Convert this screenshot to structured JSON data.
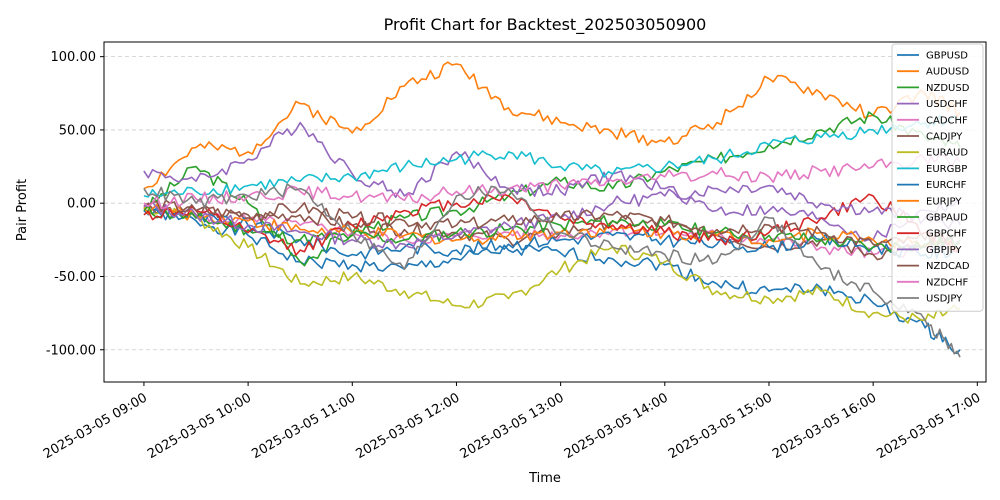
{
  "chart_data": {
    "type": "line",
    "title": "Profit Chart for Backtest_202503050900",
    "xlabel": "Time",
    "ylabel": "Pair Profit",
    "x_ticks": [
      "2025-03-05 09:00",
      "2025-03-05 10:00",
      "2025-03-05 11:00",
      "2025-03-05 12:00",
      "2025-03-05 13:00",
      "2025-03-05 14:00",
      "2025-03-05 15:00",
      "2025-03-05 16:00",
      "2025-03-05 17:00"
    ],
    "y_ticks": [
      "-100.00",
      "-50.00",
      "0.00",
      "50.00",
      "100.00"
    ],
    "ylim": [
      -122,
      110
    ],
    "xlim": [
      "2025-03-05 08:37",
      "2025-03-05 17:05"
    ],
    "grid": "horizontal dashed",
    "legend_position": "top-right",
    "x": [
      "2025-03-05 09:00",
      "2025-03-05 09:30",
      "2025-03-05 10:00",
      "2025-03-05 10:30",
      "2025-03-05 11:00",
      "2025-03-05 11:30",
      "2025-03-05 12:00",
      "2025-03-05 12:30",
      "2025-03-05 13:00",
      "2025-03-05 13:30",
      "2025-03-05 14:00",
      "2025-03-05 14:30",
      "2025-03-05 15:00",
      "2025-03-05 15:30",
      "2025-03-05 16:00",
      "2025-03-05 16:30",
      "2025-03-05 16:50"
    ],
    "series": [
      {
        "name": "GBPUSD",
        "color": "#1f77b4",
        "values": [
          -5,
          -12,
          -22,
          -40,
          -42,
          -45,
          -38,
          -32,
          -34,
          -38,
          -42,
          -55,
          -60,
          -58,
          -68,
          -85,
          -100
        ]
      },
      {
        "name": "AUDUSD",
        "color": "#ff7f0e",
        "values": [
          10,
          38,
          35,
          68,
          48,
          80,
          95,
          65,
          55,
          48,
          42,
          55,
          85,
          75,
          60,
          75,
          62
        ]
      },
      {
        "name": "NZDUSD",
        "color": "#2ca02c",
        "values": [
          -5,
          25,
          0,
          -40,
          -20,
          -10,
          -5,
          5,
          15,
          10,
          22,
          30,
          40,
          50,
          60,
          45,
          38
        ]
      },
      {
        "name": "USDCHF",
        "color": "#9467bd",
        "values": [
          22,
          15,
          30,
          55,
          20,
          5,
          35,
          10,
          8,
          20,
          10,
          -5,
          -5,
          -10,
          -25,
          -5,
          0
        ]
      },
      {
        "name": "CADCHF",
        "color": "#e377c2",
        "values": [
          -3,
          -8,
          -12,
          -15,
          -20,
          -25,
          -22,
          -20,
          -22,
          -18,
          -20,
          -22,
          -25,
          -30,
          -35,
          -30,
          -28
        ]
      },
      {
        "name": "CADJPY",
        "color": "#8c564b",
        "values": [
          -2,
          -5,
          -10,
          -8,
          -15,
          -18,
          -20,
          -25,
          -20,
          -12,
          -15,
          -22,
          -30,
          -25,
          -35,
          -30,
          -28
        ]
      },
      {
        "name": "EURAUD",
        "color": "#bcbd22",
        "values": [
          -3,
          -10,
          -30,
          -55,
          -50,
          -60,
          -70,
          -65,
          -45,
          -30,
          -40,
          -60,
          -65,
          -60,
          -75,
          -80,
          -72
        ]
      },
      {
        "name": "EURGBP",
        "color": "#17becf",
        "values": [
          5,
          8,
          12,
          15,
          18,
          25,
          30,
          35,
          25,
          20,
          25,
          30,
          40,
          45,
          50,
          55,
          58
        ]
      },
      {
        "name": "EURCHF",
        "color": "#1f77b4",
        "values": [
          -5,
          -10,
          -15,
          -25,
          -35,
          -30,
          -32,
          -28,
          -25,
          -22,
          -25,
          -28,
          -30,
          -25,
          -30,
          -35,
          -32
        ]
      },
      {
        "name": "EURJPY",
        "color": "#ff7f0e",
        "values": [
          -3,
          -8,
          -12,
          -18,
          -20,
          -22,
          -25,
          -22,
          -20,
          -18,
          -20,
          -22,
          -25,
          -20,
          -25,
          -28,
          -30
        ]
      },
      {
        "name": "GBPAUD",
        "color": "#2ca02c",
        "values": [
          -5,
          -10,
          -18,
          -25,
          -22,
          -25,
          -20,
          -18,
          -15,
          -12,
          -15,
          -20,
          -22,
          -25,
          -30,
          -28,
          -25
        ]
      },
      {
        "name": "GBPCHF",
        "color": "#d62728",
        "values": [
          -8,
          -5,
          -20,
          -32,
          -15,
          -5,
          0,
          5,
          -10,
          -15,
          -20,
          -25,
          -20,
          -10,
          5,
          -20,
          -30
        ]
      },
      {
        "name": "GBPJPY",
        "color": "#9467bd",
        "values": [
          -2,
          -8,
          -15,
          -20,
          -25,
          -28,
          -22,
          -15,
          -10,
          0,
          5,
          10,
          12,
          0,
          -5,
          -10,
          -15
        ]
      },
      {
        "name": "NZDCAD",
        "color": "#8c564b",
        "values": [
          0,
          -5,
          -8,
          -3,
          -10,
          -12,
          -15,
          -12,
          -10,
          -8,
          -12,
          -18,
          -15,
          -20,
          -28,
          -25,
          -22
        ]
      },
      {
        "name": "NZDCHF",
        "color": "#e377c2",
        "values": [
          0,
          3,
          5,
          8,
          5,
          2,
          8,
          10,
          12,
          15,
          18,
          20,
          18,
          22,
          25,
          30,
          28
        ]
      },
      {
        "name": "USDJPY",
        "color": "#7f7f7f",
        "values": [
          10,
          0,
          5,
          10,
          -20,
          -45,
          5,
          10,
          -20,
          -30,
          -35,
          -40,
          -10,
          -45,
          -60,
          -80,
          -105
        ]
      }
    ]
  }
}
